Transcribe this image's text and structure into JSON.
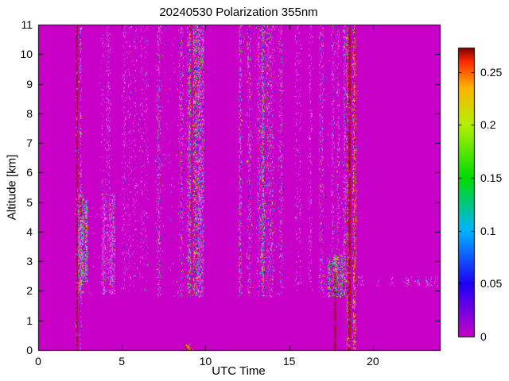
{
  "figure": {
    "background": "#FFFFFF"
  },
  "chart_data": {
    "type": "heatmap",
    "title": "20240530 Polarization 355nm",
    "xlabel": "UTC Time",
    "ylabel": "Altitude [km]",
    "x_range": [
      0,
      24
    ],
    "y_range": [
      0,
      11
    ],
    "x_ticks": {
      "values": [
        0,
        5,
        10,
        15,
        20
      ],
      "labels": [
        "0",
        "5",
        "10",
        "15",
        "20"
      ]
    },
    "y_ticks": {
      "values": [
        0,
        1,
        2,
        3,
        4,
        5,
        6,
        7,
        8,
        9,
        10,
        11
      ],
      "labels": [
        "0",
        "1",
        "2",
        "3",
        "4",
        "5",
        "6",
        "7",
        "8",
        "9",
        "10",
        "11"
      ]
    },
    "colorbar": {
      "max": 0.273,
      "ticks": {
        "values": [
          0,
          0.05,
          0.1,
          0.15,
          0.2,
          0.25
        ],
        "labels": [
          "0",
          "0.05",
          "0.1",
          "0.15",
          "0.2",
          "0.25"
        ]
      },
      "stops": [
        [
          0.0,
          "#C800C8"
        ],
        [
          0.05,
          "#1E00FA"
        ],
        [
          0.1,
          "#00B4FF"
        ],
        [
          0.15,
          "#00DC00"
        ],
        [
          0.2,
          "#B4F000"
        ],
        [
          0.235,
          "#FFB400"
        ],
        [
          0.26,
          "#FF2800"
        ],
        [
          0.273,
          "#780000"
        ]
      ]
    },
    "background_value": 0,
    "noise_bands": [
      {
        "x0": 2.35,
        "x1": 4.6,
        "y0": 1.9,
        "y1": 5.3,
        "density": 0.25,
        "columns": 6,
        "mix": {
          "pink": 0.75,
          "cool": 0.15,
          "warm": 0.07,
          "dark": 0.03
        }
      },
      {
        "x0": 2.45,
        "x1": 3.2,
        "y0": 2.3,
        "y1": 5.1,
        "density": 0.5,
        "columns": 4,
        "mix": {
          "pink": 0.35,
          "cool": 0.3,
          "warm": 0.25,
          "dark": 0.1
        }
      },
      {
        "x0": 2.2,
        "x1": 2.6,
        "y0": 0,
        "y1": 11,
        "density": 0.18,
        "columns": 2,
        "mix": {
          "pink": 0.5,
          "cool": 0.2,
          "warm": 0.12,
          "dark": 0.18
        }
      },
      {
        "x0": 3.0,
        "x1": 7.0,
        "y0": 2.0,
        "y1": 11,
        "density": 0.045,
        "columns": 10,
        "mix": {
          "pink": 0.9,
          "cool": 0.08,
          "warm": 0.02,
          "dark": 0.0
        }
      },
      {
        "x0": 7.0,
        "x1": 9.9,
        "y0": 1.8,
        "y1": 11,
        "density": 0.16,
        "columns": 8,
        "mix": {
          "pink": 0.62,
          "cool": 0.2,
          "warm": 0.1,
          "dark": 0.08
        }
      },
      {
        "x0": 8.9,
        "x1": 9.5,
        "y0": 1.8,
        "y1": 11,
        "density": 0.35,
        "columns": 3,
        "mix": {
          "pink": 0.3,
          "cool": 0.25,
          "warm": 0.2,
          "dark": 0.25
        }
      },
      {
        "x0": 12.0,
        "x1": 14.7,
        "y0": 1.8,
        "y1": 11,
        "density": 0.13,
        "columns": 7,
        "mix": {
          "pink": 0.62,
          "cool": 0.2,
          "warm": 0.12,
          "dark": 0.06
        }
      },
      {
        "x0": 13.1,
        "x1": 13.6,
        "y0": 1.8,
        "y1": 11,
        "density": 0.3,
        "columns": 2,
        "mix": {
          "pink": 0.35,
          "cool": 0.3,
          "warm": 0.2,
          "dark": 0.15
        }
      },
      {
        "x0": 15.3,
        "x1": 16.6,
        "y0": 2.0,
        "y1": 11,
        "density": 0.05,
        "columns": 4,
        "mix": {
          "pink": 0.9,
          "cool": 0.08,
          "warm": 0.02,
          "dark": 0.0
        }
      },
      {
        "x0": 16.8,
        "x1": 18.5,
        "y0": 1.8,
        "y1": 11,
        "density": 0.12,
        "columns": 6,
        "mix": {
          "pink": 0.7,
          "cool": 0.18,
          "warm": 0.08,
          "dark": 0.04
        }
      },
      {
        "x0": 17.1,
        "x1": 18.4,
        "y0": 1.8,
        "y1": 3.2,
        "density": 0.6,
        "columns": 5,
        "mix": {
          "pink": 0.3,
          "cool": 0.3,
          "warm": 0.28,
          "dark": 0.12
        }
      },
      {
        "x0": 18.3,
        "x1": 19.2,
        "y0": 0,
        "y1": 11,
        "density": 0.25,
        "columns": 3,
        "mix": {
          "pink": 0.25,
          "cool": 0.1,
          "warm": 0.15,
          "dark": 0.5
        }
      },
      {
        "x0": 19.0,
        "x1": 24.0,
        "y0": 2.15,
        "y1": 2.5,
        "density": 0.12,
        "columns": 14,
        "mix": {
          "pink": 0.85,
          "cool": 0.12,
          "warm": 0.03,
          "dark": 0.0
        }
      },
      {
        "x0": 8.7,
        "x1": 9.4,
        "y0": 0,
        "y1": 0.2,
        "density": 0.5,
        "columns": 2,
        "mix": {
          "pink": 0.1,
          "cool": 0.0,
          "warm": 0.2,
          "dark": 0.7
        }
      }
    ],
    "dark_columns": [
      {
        "x": 2.32,
        "y0": 0,
        "y1": 11,
        "w": 2,
        "value": 0.27,
        "alpha": 0.9
      },
      {
        "x": 2.55,
        "y0": 4.4,
        "y1": 5.15,
        "w": 3,
        "value": 0.27,
        "alpha": 0.7
      },
      {
        "x": 9.2,
        "y0": 1.8,
        "y1": 11,
        "w": 1.5,
        "value": 0.265,
        "alpha": 0.5
      },
      {
        "x": 17.75,
        "y0": 0,
        "y1": 2.7,
        "w": 2.5,
        "value": 0.27,
        "alpha": 0.95
      },
      {
        "x": 18.6,
        "y0": 0,
        "y1": 11,
        "w": 3,
        "value": 0.27,
        "alpha": 0.8
      },
      {
        "x": 18.95,
        "y0": 2.2,
        "y1": 11,
        "w": 1.5,
        "value": 0.265,
        "alpha": 0.5
      }
    ]
  }
}
